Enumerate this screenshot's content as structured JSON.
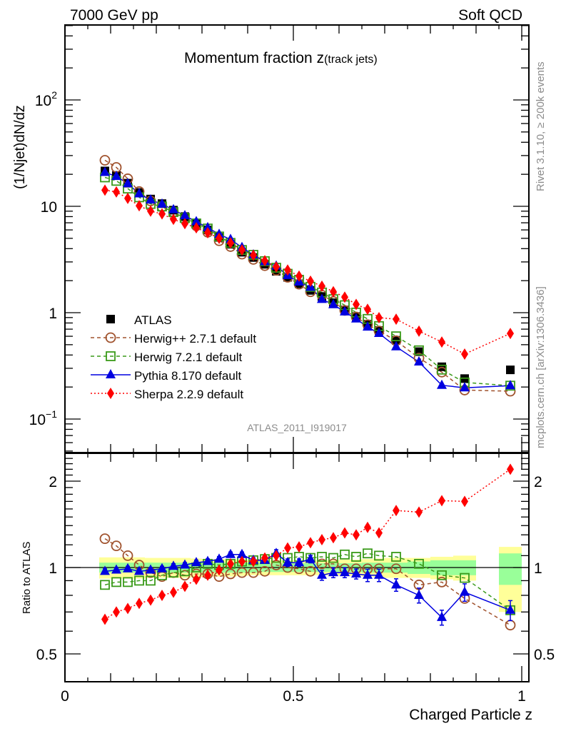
{
  "header": {
    "left": "7000 GeV pp",
    "right": "Soft QCD"
  },
  "side_labels": {
    "rivet": "Rivet 3.1.10, ≥ 200k events",
    "mcplots": "mcplots.cern.ch [arXiv:1306.3436]"
  },
  "chart_data": [
    {
      "type": "line",
      "panel": "main",
      "title": "Momentum fraction z",
      "title_suffix": "(track jets)",
      "analysis_label": "ATLAS_2011_I919017",
      "xlabel": "Charged Particle z",
      "ylabel": "(1/Njet)dN/dz",
      "yscale": "log",
      "xlim": [
        0,
        1.017
      ],
      "ylim": [
        0.045,
        560
      ],
      "y_tick_labels": [
        {
          "value": 0.1,
          "base": "10",
          "exp": "−1"
        },
        {
          "value": 1,
          "base": "1",
          "exp": ""
        },
        {
          "value": 10,
          "base": "10",
          "exp": ""
        },
        {
          "value": 100,
          "base": "10",
          "exp": "2"
        }
      ],
      "legend_position": "lower-left",
      "x": [
        0.0875,
        0.1125,
        0.1375,
        0.1625,
        0.1875,
        0.2125,
        0.2375,
        0.2625,
        0.2875,
        0.3125,
        0.3375,
        0.3625,
        0.3875,
        0.4125,
        0.4375,
        0.4625,
        0.4875,
        0.5125,
        0.5375,
        0.5625,
        0.5875,
        0.6125,
        0.6375,
        0.6625,
        0.6875,
        0.725,
        0.775,
        0.825,
        0.875,
        0.975
      ],
      "atlas": {
        "name": "ATLAS",
        "color": "#000000",
        "marker": "square-filled",
        "values": [
          21.5,
          19.5,
          16.5,
          13.5,
          11.7,
          10.6,
          9.2,
          8.0,
          6.9,
          6.0,
          5.1,
          4.4,
          3.7,
          3.3,
          2.85,
          2.45,
          2.15,
          1.87,
          1.62,
          1.42,
          1.24,
          1.06,
          0.92,
          0.78,
          0.68,
          0.55,
          0.43,
          0.31,
          0.24,
          0.29
        ]
      },
      "series": [
        {
          "name": "Herwig++ 2.7.1 default",
          "color": "#a0522d",
          "marker": "circle-open",
          "line": "dashed"
        },
        {
          "name": "Herwig 7.2.1 default",
          "color": "#3a9a1a",
          "marker": "square-open",
          "line": "dashed"
        },
        {
          "name": "Pythia 8.170 default",
          "color": "#0000e0",
          "marker": "triangle-filled",
          "line": "solid"
        },
        {
          "name": "Sherpa 2.2.9 default",
          "color": "#ff0000",
          "marker": "diamond-filled",
          "line": "dotted"
        }
      ]
    },
    {
      "type": "line",
      "panel": "ratio",
      "ylabel": "Ratio to ATLAS",
      "yscale": "log",
      "ylim": [
        0.42,
        2.45
      ],
      "y_tick_labels": [
        {
          "value": 0.5,
          "label": "0.5"
        },
        {
          "value": 1,
          "label": "1"
        },
        {
          "value": 2,
          "label": "2"
        }
      ],
      "x_tick_labels": [
        {
          "value": 0,
          "label": "0"
        },
        {
          "value": 0.5,
          "label": "0.5"
        },
        {
          "value": 1,
          "label": "1"
        }
      ],
      "x": [
        0.0875,
        0.1125,
        0.1375,
        0.1625,
        0.1875,
        0.2125,
        0.2375,
        0.2625,
        0.2875,
        0.3125,
        0.3375,
        0.3625,
        0.3875,
        0.4125,
        0.4375,
        0.4625,
        0.4875,
        0.5125,
        0.5375,
        0.5625,
        0.5875,
        0.6125,
        0.6375,
        0.6625,
        0.6875,
        0.725,
        0.775,
        0.825,
        0.875,
        0.975
      ],
      "bin_edges": [
        0.075,
        0.1,
        0.125,
        0.15,
        0.175,
        0.2,
        0.225,
        0.25,
        0.275,
        0.3,
        0.325,
        0.35,
        0.375,
        0.4,
        0.425,
        0.45,
        0.475,
        0.5,
        0.525,
        0.55,
        0.575,
        0.6,
        0.625,
        0.65,
        0.675,
        0.7,
        0.75,
        0.8,
        0.85,
        0.9
      ],
      "last_bin": [
        0.95,
        1.0
      ],
      "band_stat": [
        0.04,
        0.04,
        0.04,
        0.04,
        0.04,
        0.04,
        0.04,
        0.04,
        0.04,
        0.04,
        0.04,
        0.04,
        0.04,
        0.04,
        0.035,
        0.035,
        0.035,
        0.035,
        0.035,
        0.035,
        0.035,
        0.035,
        0.035,
        0.04,
        0.04,
        0.04,
        0.05,
        0.06,
        0.06,
        0.13
      ],
      "band_total": [
        0.085,
        0.085,
        0.085,
        0.085,
        0.08,
        0.08,
        0.08,
        0.08,
        0.075,
        0.07,
        0.07,
        0.07,
        0.065,
        0.06,
        0.06,
        0.06,
        0.06,
        0.06,
        0.06,
        0.06,
        0.06,
        0.065,
        0.065,
        0.07,
        0.075,
        0.08,
        0.08,
        0.09,
        0.1,
        0.2
      ],
      "series": [
        {
          "name": "Herwig++ 2.7.1 default",
          "values": [
            1.26,
            1.19,
            1.1,
            1.02,
            0.96,
            0.93,
            0.96,
            0.94,
            0.95,
            0.95,
            0.93,
            0.95,
            0.96,
            0.96,
            0.97,
            1.02,
            1.0,
            0.99,
            0.97,
            1.03,
            1.03,
            0.99,
            0.99,
            0.99,
            0.99,
            0.99,
            0.87,
            0.89,
            0.78,
            0.63
          ]
        },
        {
          "name": "Herwig 7.2.1 default",
          "values": [
            0.87,
            0.89,
            0.89,
            0.9,
            0.9,
            0.94,
            0.96,
            0.97,
            1.0,
            1.03,
            1.02,
            1.03,
            1.05,
            1.06,
            1.07,
            1.08,
            1.08,
            1.09,
            1.08,
            1.09,
            1.08,
            1.11,
            1.09,
            1.12,
            1.1,
            1.09,
            1.03,
            0.94,
            0.92,
            0.71
          ]
        },
        {
          "name": "Pythia 8.170 default",
          "values": [
            0.97,
            0.98,
            0.99,
            0.97,
            0.98,
            0.99,
            1.01,
            1.02,
            1.04,
            1.05,
            1.07,
            1.11,
            1.11,
            1.06,
            1.06,
            1.12,
            1.04,
            1.04,
            1.07,
            0.94,
            0.96,
            0.96,
            0.95,
            0.94,
            0.94,
            0.87,
            0.8,
            0.67,
            0.82,
            0.71
          ],
          "errors": [
            0.02,
            0.02,
            0.02,
            0.02,
            0.02,
            0.02,
            0.02,
            0.02,
            0.02,
            0.02,
            0.02,
            0.02,
            0.02,
            0.02,
            0.02,
            0.03,
            0.03,
            0.03,
            0.03,
            0.04,
            0.04,
            0.04,
            0.04,
            0.05,
            0.05,
            0.05,
            0.06,
            0.06,
            0.07,
            0.08
          ]
        },
        {
          "name": "Sherpa 2.2.9 default",
          "values": [
            0.66,
            0.7,
            0.72,
            0.75,
            0.77,
            0.8,
            0.82,
            0.86,
            0.91,
            0.94,
            0.98,
            1.03,
            1.05,
            1.05,
            1.08,
            1.1,
            1.17,
            1.18,
            1.22,
            1.25,
            1.27,
            1.32,
            1.3,
            1.38,
            1.32,
            1.58,
            1.56,
            1.71,
            1.7,
            2.2
          ]
        }
      ]
    }
  ]
}
